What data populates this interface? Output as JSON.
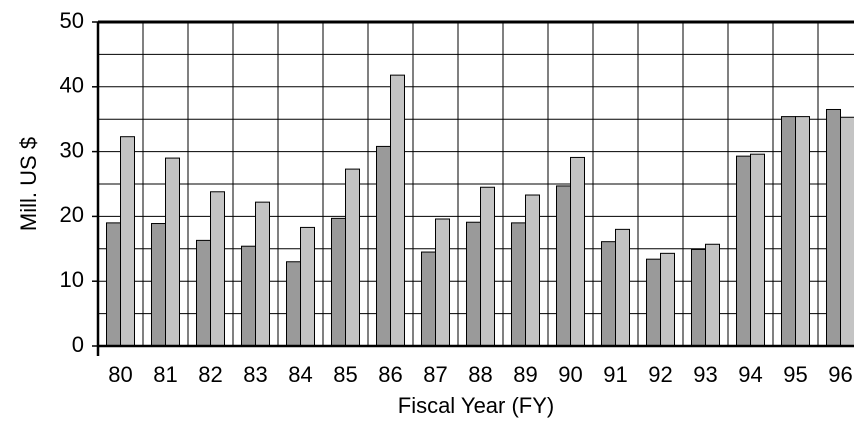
{
  "chart_data": {
    "type": "bar",
    "y_label": "Mill. US $",
    "x_label": "Fiscal Year (FY)",
    "categories": [
      "80",
      "81",
      "82",
      "83",
      "84",
      "85",
      "86",
      "87",
      "88",
      "89",
      "90",
      "91",
      "92",
      "93",
      "94",
      "95",
      "96"
    ],
    "series": [
      {
        "color": "#9a9a9a",
        "values": [
          19,
          18.9,
          16.3,
          15.4,
          13,
          19.7,
          30.8,
          14.5,
          19.1,
          19,
          24.7,
          16.1,
          13.4,
          14.9,
          29.3,
          35.4,
          36.5
        ]
      },
      {
        "color": "#c4c4c4",
        "values": [
          32.3,
          29,
          23.8,
          22.2,
          18.3,
          27.3,
          41.8,
          19.6,
          24.5,
          23.3,
          29.1,
          18,
          14.3,
          15.7,
          29.6,
          35.4,
          35.3
        ]
      }
    ],
    "ylim": [
      0,
      50
    ],
    "yticks": [
      0,
      10,
      20,
      30,
      40,
      50
    ],
    "grid": true
  }
}
